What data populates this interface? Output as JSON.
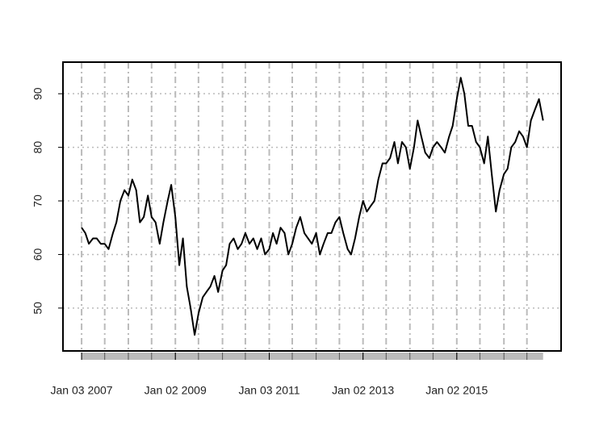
{
  "chart_data": {
    "type": "line",
    "x": [
      "2007-01-03",
      "2007-02-01",
      "2007-03-01",
      "2007-04-02",
      "2007-05-01",
      "2007-06-01",
      "2007-07-02",
      "2007-08-01",
      "2007-09-04",
      "2007-10-01",
      "2007-11-01",
      "2007-12-03",
      "2008-01-02",
      "2008-02-01",
      "2008-03-03",
      "2008-04-01",
      "2008-05-01",
      "2008-06-02",
      "2008-07-01",
      "2008-08-01",
      "2008-09-02",
      "2008-10-01",
      "2008-11-03",
      "2008-12-01",
      "2009-01-02",
      "2009-02-02",
      "2009-03-02",
      "2009-04-01",
      "2009-05-01",
      "2009-06-01",
      "2009-07-01",
      "2009-08-03",
      "2009-09-01",
      "2009-10-01",
      "2009-11-02",
      "2009-12-01",
      "2010-01-04",
      "2010-02-01",
      "2010-03-01",
      "2010-04-01",
      "2010-05-03",
      "2010-06-01",
      "2010-07-01",
      "2010-08-02",
      "2010-09-01",
      "2010-10-01",
      "2010-11-01",
      "2010-12-01",
      "2011-01-03",
      "2011-02-01",
      "2011-03-01",
      "2011-04-01",
      "2011-05-02",
      "2011-06-01",
      "2011-07-01",
      "2011-08-01",
      "2011-09-01",
      "2011-10-03",
      "2011-11-01",
      "2011-12-01",
      "2012-01-03",
      "2012-02-01",
      "2012-03-01",
      "2012-04-02",
      "2012-05-01",
      "2012-06-01",
      "2012-07-02",
      "2012-08-01",
      "2012-09-04",
      "2012-10-01",
      "2012-11-01",
      "2012-12-03",
      "2013-01-02",
      "2013-02-01",
      "2013-03-01",
      "2013-04-01",
      "2013-05-01",
      "2013-06-03",
      "2013-07-01",
      "2013-08-01",
      "2013-09-03",
      "2013-10-01",
      "2013-11-01",
      "2013-12-02",
      "2014-01-02",
      "2014-02-03",
      "2014-03-03",
      "2014-04-01",
      "2014-05-01",
      "2014-06-02",
      "2014-07-01",
      "2014-08-01",
      "2014-09-02",
      "2014-10-01",
      "2014-11-03",
      "2014-12-01",
      "2015-01-02",
      "2015-02-02",
      "2015-03-02",
      "2015-04-01",
      "2015-05-01",
      "2015-06-01",
      "2015-07-01",
      "2015-08-03",
      "2015-09-01",
      "2015-10-01",
      "2015-11-02",
      "2015-12-01",
      "2016-01-04",
      "2016-02-01",
      "2016-03-01",
      "2016-04-01",
      "2016-05-02",
      "2016-06-01",
      "2016-07-01",
      "2016-08-01",
      "2016-09-01",
      "2016-10-03",
      "2016-11-04"
    ],
    "series": [
      {
        "color": "#000000",
        "values": [
          65,
          64,
          62,
          63,
          63,
          62,
          62,
          61,
          64,
          66,
          70,
          72,
          71,
          74,
          72,
          66,
          67,
          71,
          67,
          66,
          62,
          66,
          70,
          73,
          67,
          58,
          63,
          54,
          50,
          45,
          49,
          52,
          53,
          54,
          56,
          53,
          57,
          58,
          62,
          63,
          61,
          62,
          64,
          62,
          63,
          61,
          63,
          60,
          61,
          64,
          62,
          65,
          64,
          60,
          62,
          65,
          67,
          64,
          63,
          62,
          64,
          60,
          62,
          64,
          64,
          66,
          67,
          64,
          61,
          60,
          63,
          67,
          70,
          68,
          69,
          70,
          74,
          77,
          77,
          78,
          81,
          77,
          81,
          80,
          76,
          80,
          85,
          82,
          79,
          78,
          80,
          81,
          80,
          79,
          82,
          84,
          89,
          93,
          90,
          84,
          84,
          81,
          80,
          77,
          82,
          75,
          68,
          72,
          75,
          76,
          80,
          81,
          83,
          82,
          80,
          85,
          87,
          89,
          85
        ]
      }
    ],
    "xlim": [
      "2006-08-11",
      "2017-03-24"
    ],
    "ylim": [
      42,
      95.9
    ],
    "yticks": [
      50,
      60,
      70,
      80,
      90
    ],
    "xticks": [
      {
        "value": "2007-01-03",
        "label": "Jan 03 2007"
      },
      {
        "value": "2009-01-02",
        "label": "Jan 02 2009"
      },
      {
        "value": "2011-01-03",
        "label": "Jan 03 2011"
      },
      {
        "value": "2013-01-02",
        "label": "Jan 02 2013"
      },
      {
        "value": "2015-01-02",
        "label": "Jan 02 2015"
      }
    ],
    "xgrid": [
      "2007-01-03",
      "2007-07-02",
      "2008-01-02",
      "2008-07-01",
      "2009-01-02",
      "2009-07-01",
      "2010-01-04",
      "2010-07-01",
      "2011-01-03",
      "2011-07-01",
      "2012-01-03",
      "2012-07-02",
      "2013-01-02",
      "2013-07-01",
      "2014-01-02",
      "2014-07-01",
      "2015-01-02",
      "2015-07-01",
      "2016-01-04",
      "2016-07-01"
    ],
    "grid": true
  }
}
